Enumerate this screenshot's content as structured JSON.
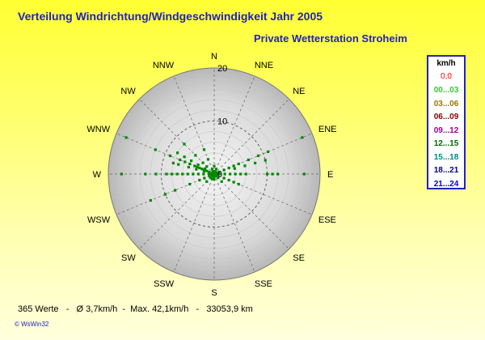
{
  "header": {
    "title": "Verteilung Windrichtung/Windgeschwindigkeit  Jahr 2005",
    "subtitle": "Private Wetterstation Stroheim"
  },
  "legend": {
    "unit": "km/h",
    "calm": "0,0",
    "items": [
      {
        "label": "00...03",
        "color": "#33cc33"
      },
      {
        "label": "03...06",
        "color": "#997700"
      },
      {
        "label": "06...09",
        "color": "#880000"
      },
      {
        "label": "09...12",
        "color": "#990099"
      },
      {
        "label": "12...15",
        "color": "#006600"
      },
      {
        "label": "15...18",
        "color": "#008888"
      },
      {
        "label": "18...21",
        "color": "#000088"
      },
      {
        "label": "21...24",
        "color": "#0000cc"
      }
    ]
  },
  "footer": {
    "stats": "365 Werte   -   Ø 3,7km/h  -  Max. 42,1km/h   -   33053,9 km"
  },
  "credit": "© WsWin32",
  "chart_data": {
    "type": "scatter",
    "coordinate_system": "polar",
    "title": "Verteilung Windrichtung/Windgeschwindigkeit  Jahr 2005",
    "radial_ticks": [
      0,
      10,
      20
    ],
    "rlim": [
      0,
      20
    ],
    "direction_labels": [
      "N",
      "NNE",
      "NE",
      "ENE",
      "E",
      "ESE",
      "SE",
      "SSE",
      "S",
      "SSW",
      "SW",
      "WSW",
      "W",
      "WNW",
      "NW",
      "NNW"
    ],
    "point_color": "#008800",
    "points": [
      {
        "dir_deg": 292.5,
        "r": 18
      },
      {
        "dir_deg": 292.5,
        "r": 12
      },
      {
        "dir_deg": 292.5,
        "r": 9
      },
      {
        "dir_deg": 292.5,
        "r": 7
      },
      {
        "dir_deg": 292.5,
        "r": 6
      },
      {
        "dir_deg": 292.5,
        "r": 5
      },
      {
        "dir_deg": 292.5,
        "r": 4
      },
      {
        "dir_deg": 292.5,
        "r": 3.5
      },
      {
        "dir_deg": 292.5,
        "r": 3
      },
      {
        "dir_deg": 292.5,
        "r": 2.5
      },
      {
        "dir_deg": 292.5,
        "r": 2
      },
      {
        "dir_deg": 292.5,
        "r": 1.5
      },
      {
        "dir_deg": 292.5,
        "r": 1
      },
      {
        "dir_deg": 300,
        "r": 8
      },
      {
        "dir_deg": 300,
        "r": 6.5
      },
      {
        "dir_deg": 300,
        "r": 5
      },
      {
        "dir_deg": 300,
        "r": 3.5
      },
      {
        "dir_deg": 300,
        "r": 2
      },
      {
        "dir_deg": 285,
        "r": 8
      },
      {
        "dir_deg": 285,
        "r": 7
      },
      {
        "dir_deg": 285,
        "r": 5
      },
      {
        "dir_deg": 285,
        "r": 3.5
      },
      {
        "dir_deg": 285,
        "r": 2
      },
      {
        "dir_deg": 270,
        "r": 17.5
      },
      {
        "dir_deg": 270,
        "r": 13
      },
      {
        "dir_deg": 270,
        "r": 11
      },
      {
        "dir_deg": 270,
        "r": 9
      },
      {
        "dir_deg": 270,
        "r": 8
      },
      {
        "dir_deg": 270,
        "r": 7
      },
      {
        "dir_deg": 270,
        "r": 6
      },
      {
        "dir_deg": 270,
        "r": 5
      },
      {
        "dir_deg": 270,
        "r": 4
      },
      {
        "dir_deg": 270,
        "r": 3
      },
      {
        "dir_deg": 270,
        "r": 2
      },
      {
        "dir_deg": 270,
        "r": 1
      },
      {
        "dir_deg": 247.5,
        "r": 13
      },
      {
        "dir_deg": 247.5,
        "r": 10
      },
      {
        "dir_deg": 247.5,
        "r": 8
      },
      {
        "dir_deg": 247.5,
        "r": 5
      },
      {
        "dir_deg": 247.5,
        "r": 3
      },
      {
        "dir_deg": 247.5,
        "r": 2
      },
      {
        "dir_deg": 247.5,
        "r": 1
      },
      {
        "dir_deg": 315,
        "r": 8
      },
      {
        "dir_deg": 315,
        "r": 5
      },
      {
        "dir_deg": 315,
        "r": 3
      },
      {
        "dir_deg": 315,
        "r": 2
      },
      {
        "dir_deg": 337.5,
        "r": 5
      },
      {
        "dir_deg": 337.5,
        "r": 3
      },
      {
        "dir_deg": 337.5,
        "r": 1
      },
      {
        "dir_deg": 0,
        "r": 1.5
      },
      {
        "dir_deg": 22.5,
        "r": 1
      },
      {
        "dir_deg": 67.5,
        "r": 18
      },
      {
        "dir_deg": 67.5,
        "r": 11
      },
      {
        "dir_deg": 67.5,
        "r": 9
      },
      {
        "dir_deg": 67.5,
        "r": 7
      },
      {
        "dir_deg": 67.5,
        "r": 5
      },
      {
        "dir_deg": 67.5,
        "r": 4
      },
      {
        "dir_deg": 67.5,
        "r": 3
      },
      {
        "dir_deg": 67.5,
        "r": 2
      },
      {
        "dir_deg": 67.5,
        "r": 1
      },
      {
        "dir_deg": 75,
        "r": 10
      },
      {
        "dir_deg": 75,
        "r": 8
      },
      {
        "dir_deg": 75,
        "r": 6
      },
      {
        "dir_deg": 75,
        "r": 4
      },
      {
        "dir_deg": 90,
        "r": 17
      },
      {
        "dir_deg": 90,
        "r": 12
      },
      {
        "dir_deg": 90,
        "r": 11
      },
      {
        "dir_deg": 90,
        "r": 10
      },
      {
        "dir_deg": 90,
        "r": 6
      },
      {
        "dir_deg": 90,
        "r": 5
      },
      {
        "dir_deg": 90,
        "r": 4
      },
      {
        "dir_deg": 90,
        "r": 3
      },
      {
        "dir_deg": 90,
        "r": 2
      },
      {
        "dir_deg": 90,
        "r": 1
      },
      {
        "dir_deg": 112.5,
        "r": 5
      },
      {
        "dir_deg": 112.5,
        "r": 4
      },
      {
        "dir_deg": 112.5,
        "r": 3
      },
      {
        "dir_deg": 112.5,
        "r": 2
      },
      {
        "dir_deg": 135,
        "r": 2
      },
      {
        "dir_deg": 135,
        "r": 1
      },
      {
        "dir_deg": 180,
        "r": 1
      },
      {
        "dir_deg": 202.5,
        "r": 1
      },
      {
        "dir_deg": 225,
        "r": 2
      },
      {
        "dir_deg": 225,
        "r": 1
      }
    ]
  }
}
